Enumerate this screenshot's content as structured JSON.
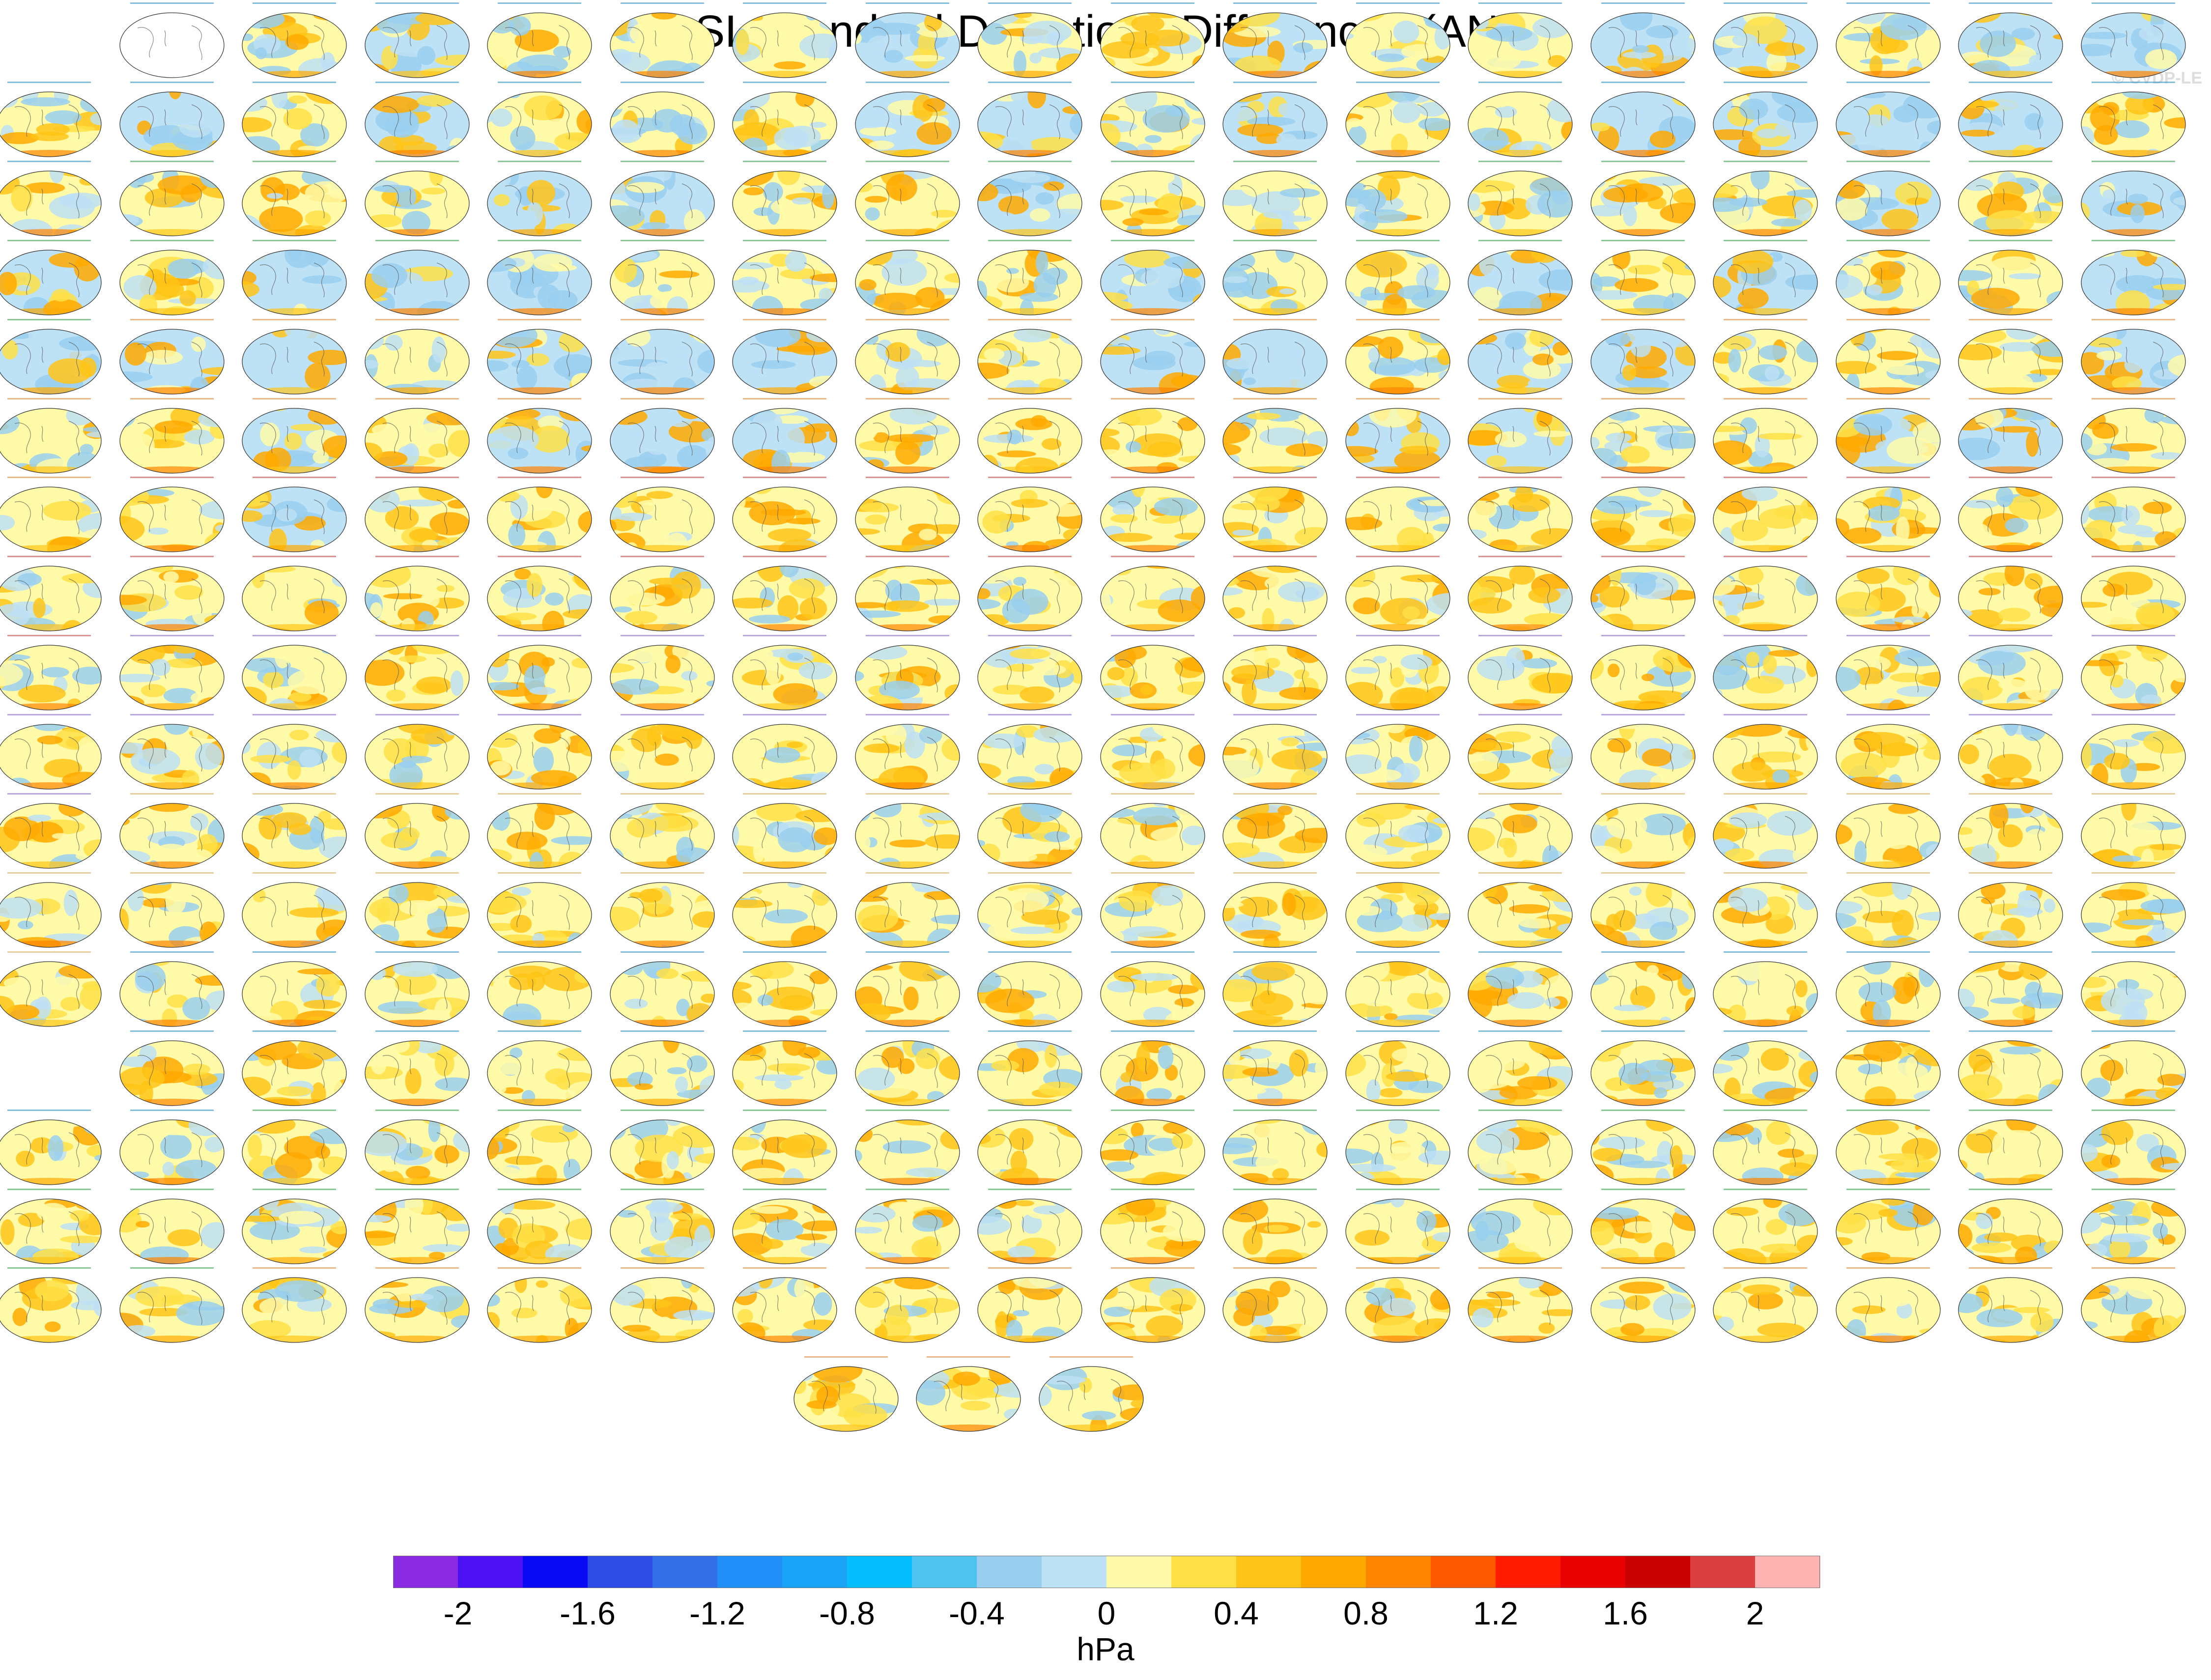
{
  "title": "PSL Standard Deviations Differences (ANN)",
  "watermark": "© CVDP-LE",
  "units": "hPa",
  "colorbar": {
    "colors": [
      "#8a2be2",
      "#4b10f4",
      "#0a0af5",
      "#2e4ce6",
      "#3370e8",
      "#228ef8",
      "#1aa3f7",
      "#04befe",
      "#4fc2ef",
      "#99cfee",
      "#bde1f5",
      "#fffaa8",
      "#ffe046",
      "#ffc417",
      "#ffa900",
      "#ff8400",
      "#ff5900",
      "#ff1c00",
      "#e90000",
      "#c80000",
      "#db4040",
      "#ffb3b3"
    ],
    "tick_labels": [
      "-2",
      "-1.6",
      "-1.2",
      "-0.8",
      "-0.4",
      "0",
      "0.4",
      "0.8",
      "1.2",
      "1.6",
      "2"
    ]
  },
  "panel_caption_colors": [
    "#1f8dbf",
    "#2f9a45",
    "#d87f2a",
    "#c23b3b",
    "#7e60c4",
    "#d4a64a"
  ],
  "map_palette": [
    "#bde1f5",
    "#99cfee",
    "#fffaa8",
    "#ffe046",
    "#ffc417",
    "#ffa900",
    "#ff8400",
    "#ff5900"
  ]
}
